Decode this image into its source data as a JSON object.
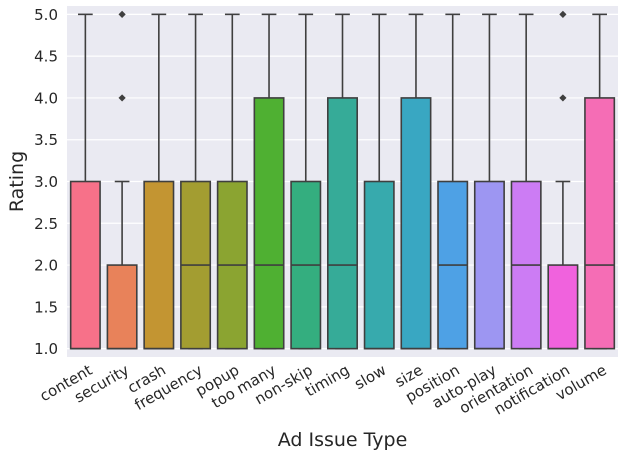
{
  "chart_data": {
    "type": "box",
    "title": "",
    "xlabel": "Ad Issue Type",
    "ylabel": "Rating",
    "ylim": [
      0.9,
      5.1
    ],
    "yticks": [
      1.0,
      1.5,
      2.0,
      2.5,
      3.0,
      3.5,
      4.0,
      4.5,
      5.0
    ],
    "ytick_labels": [
      "1.0",
      "1.5",
      "2.0",
      "2.5",
      "3.0",
      "3.5",
      "4.0",
      "4.5",
      "5.0"
    ],
    "grid": true,
    "background": "#eaeaf2",
    "categories": [
      "content",
      "security",
      "crash",
      "frequency",
      "popup",
      "too many",
      "non-skip",
      "timing",
      "slow",
      "size",
      "position",
      "auto-play",
      "orientation",
      "notification",
      "volume"
    ],
    "boxes": [
      {
        "category": "content",
        "color": "#f77189",
        "whisker_low": 1,
        "q1": 1,
        "median": 1,
        "q3": 3,
        "whisker_high": 5,
        "outliers": []
      },
      {
        "category": "security",
        "color": "#e8825a",
        "whisker_low": 1,
        "q1": 1,
        "median": 1,
        "q3": 2,
        "whisker_high": 3,
        "outliers": [
          4,
          5
        ]
      },
      {
        "category": "crash",
        "color": "#c39532",
        "whisker_low": 1,
        "q1": 1,
        "median": 1,
        "q3": 3,
        "whisker_high": 5,
        "outliers": []
      },
      {
        "category": "frequency",
        "color": "#a39d31",
        "whisker_low": 1,
        "q1": 1,
        "median": 2,
        "q3": 3,
        "whisker_high": 5,
        "outliers": []
      },
      {
        "category": "popup",
        "color": "#8ba431",
        "whisker_low": 1,
        "q1": 1,
        "median": 2,
        "q3": 3,
        "whisker_high": 5,
        "outliers": []
      },
      {
        "category": "too many",
        "color": "#4fb032",
        "whisker_low": 1,
        "q1": 1,
        "median": 2,
        "q3": 4,
        "whisker_high": 5,
        "outliers": []
      },
      {
        "category": "non-skip",
        "color": "#34ae7f",
        "whisker_low": 1,
        "q1": 1,
        "median": 2,
        "q3": 3,
        "whisker_high": 5,
        "outliers": []
      },
      {
        "category": "timing",
        "color": "#36ab98",
        "whisker_low": 1,
        "q1": 1,
        "median": 2,
        "q3": 4,
        "whisker_high": 5,
        "outliers": []
      },
      {
        "category": "slow",
        "color": "#37aaad",
        "whisker_low": 1,
        "q1": 1,
        "median": 1,
        "q3": 3,
        "whisker_high": 5,
        "outliers": []
      },
      {
        "category": "size",
        "color": "#39a7c2",
        "whisker_low": 1,
        "q1": 1,
        "median": 1,
        "q3": 4,
        "whisker_high": 5,
        "outliers": []
      },
      {
        "category": "position",
        "color": "#4ea1e5",
        "whisker_low": 1,
        "q1": 1,
        "median": 2,
        "q3": 3,
        "whisker_high": 5,
        "outliers": []
      },
      {
        "category": "auto-play",
        "color": "#9d96f2",
        "whisker_low": 1,
        "q1": 1,
        "median": 1,
        "q3": 3,
        "whisker_high": 5,
        "outliers": []
      },
      {
        "category": "orientation",
        "color": "#cc7cf4",
        "whisker_low": 1,
        "q1": 1,
        "median": 2,
        "q3": 3,
        "whisker_high": 5,
        "outliers": []
      },
      {
        "category": "notification",
        "color": "#f062dd",
        "whisker_low": 1,
        "q1": 1,
        "median": 1,
        "q3": 2,
        "whisker_high": 3,
        "outliers": [
          4,
          5
        ]
      },
      {
        "category": "volume",
        "color": "#f56db5",
        "whisker_low": 1,
        "q1": 1,
        "median": 2,
        "q3": 4,
        "whisker_high": 5,
        "outliers": []
      }
    ]
  }
}
